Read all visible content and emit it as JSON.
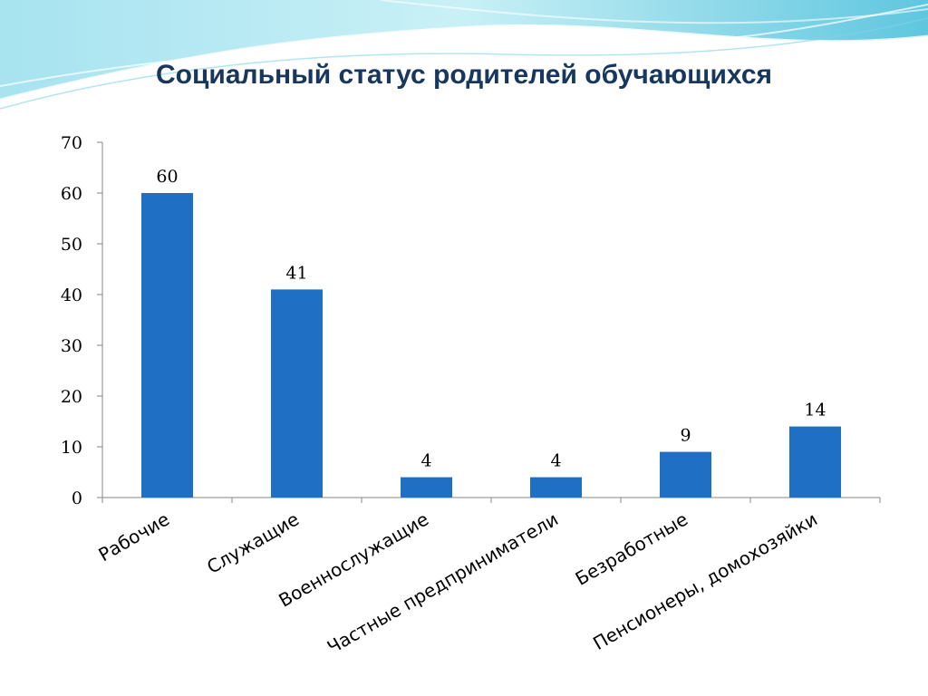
{
  "slide": {
    "title": "Социальный статус родителей обучающихся"
  },
  "chart_data": {
    "type": "bar",
    "title": "Социальный статус родителей обучающихся",
    "xlabel": "",
    "ylabel": "",
    "categories": [
      "Рабочие",
      "Служащие",
      "Военнослужащие",
      "Частные предприниматели",
      "Безработные",
      "Пенсионеры, домохозяйки"
    ],
    "values": [
      60,
      41,
      4,
      4,
      9,
      14
    ],
    "data_labels": [
      "60",
      "41",
      "4",
      "4",
      "9",
      "14"
    ],
    "ylim": [
      0,
      70
    ],
    "yticks": [
      "0",
      "10",
      "20",
      "30",
      "40",
      "50",
      "60",
      "70"
    ],
    "grid": false,
    "legend": "none",
    "bar_color": "#1f6fc5"
  }
}
